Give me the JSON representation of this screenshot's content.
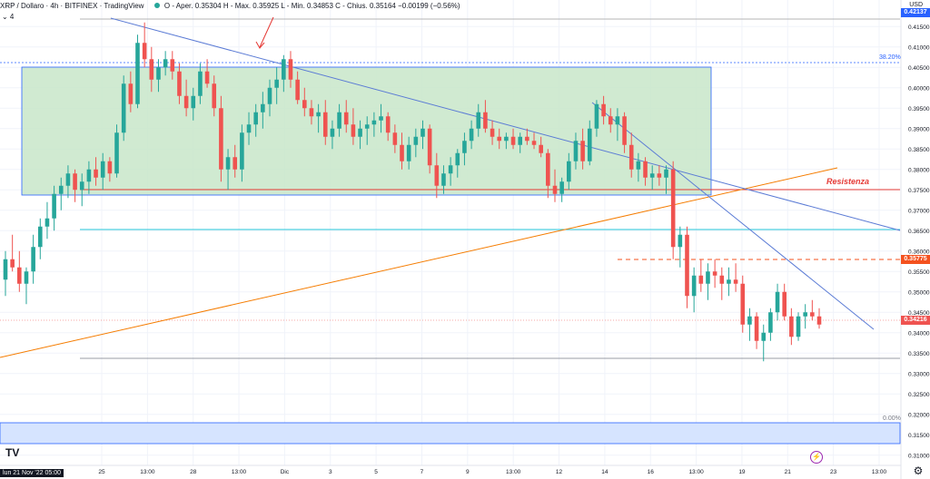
{
  "header": {
    "symbol": "XRP / Dollaro · 4h · BITFINEX · TradingView",
    "ohlc": "O - Aper. 0.35304  H - Max. 0.35925  L - Min. 0.34853  C - Chius. 0.35164  −0.00199 (−0.56%)",
    "collapse_label": "⌄ 4",
    "currency": "USD"
  },
  "labels": {
    "fib_top": "38.20%",
    "fib_bottom": "0.00%",
    "resistance": "Resistenza",
    "date_start": "lun 21 Nov '22  05:00"
  },
  "price_tags": {
    "top": "0.42137",
    "dashed": "0.35775",
    "current": "0.34216"
  },
  "colors": {
    "up": "#26a69a",
    "down": "#ef5350",
    "box_fill": "#c8e6c9",
    "box_border": "#2962ff",
    "trend": "#5b7bd5",
    "support_orange": "#f57c00",
    "resistance_red": "#e53935",
    "cyan_line": "#26c6da",
    "bottom_band": "#d6e4ff"
  },
  "chart_data": {
    "type": "candlestick",
    "yaxis_ticks": [
      "0.41500",
      "0.41000",
      "0.40500",
      "0.40000",
      "0.39500",
      "0.39000",
      "0.38500",
      "0.38000",
      "0.37500",
      "0.37000",
      "0.36500",
      "0.36000",
      "0.35500",
      "0.35000",
      "0.34500",
      "0.34000",
      "0.33500",
      "0.33000",
      "0.32500",
      "0.32000",
      "0.31500",
      "0.31000"
    ],
    "xaxis_ticks": [
      "25",
      "13:00",
      "28",
      "13:00",
      "Dic",
      "3",
      "5",
      "7",
      "9",
      "13:00",
      "12",
      "14",
      "16",
      "13:00",
      "19",
      "21",
      "23",
      "13:00"
    ],
    "ylim": [
      0.3075,
      0.4215
    ],
    "candles": [
      [
        0.353,
        0.36,
        0.349,
        0.358
      ],
      [
        0.358,
        0.364,
        0.355,
        0.356
      ],
      [
        0.356,
        0.36,
        0.35,
        0.352
      ],
      [
        0.352,
        0.356,
        0.347,
        0.355
      ],
      [
        0.355,
        0.364,
        0.352,
        0.361
      ],
      [
        0.361,
        0.368,
        0.358,
        0.366
      ],
      [
        0.366,
        0.372,
        0.363,
        0.368
      ],
      [
        0.368,
        0.376,
        0.365,
        0.374
      ],
      [
        0.374,
        0.378,
        0.37,
        0.376
      ],
      [
        0.376,
        0.381,
        0.373,
        0.379
      ],
      [
        0.379,
        0.38,
        0.372,
        0.375
      ],
      [
        0.375,
        0.379,
        0.371,
        0.377
      ],
      [
        0.377,
        0.382,
        0.374,
        0.38
      ],
      [
        0.38,
        0.383,
        0.376,
        0.378
      ],
      [
        0.378,
        0.384,
        0.375,
        0.382
      ],
      [
        0.382,
        0.383,
        0.377,
        0.379
      ],
      [
        0.379,
        0.391,
        0.378,
        0.389
      ],
      [
        0.389,
        0.403,
        0.387,
        0.401
      ],
      [
        0.401,
        0.404,
        0.394,
        0.396
      ],
      [
        0.396,
        0.413,
        0.395,
        0.411
      ],
      [
        0.411,
        0.416,
        0.405,
        0.407
      ],
      [
        0.407,
        0.41,
        0.399,
        0.402
      ],
      [
        0.402,
        0.407,
        0.399,
        0.405
      ],
      [
        0.405,
        0.409,
        0.403,
        0.407
      ],
      [
        0.407,
        0.409,
        0.402,
        0.404
      ],
      [
        0.404,
        0.406,
        0.396,
        0.398
      ],
      [
        0.398,
        0.402,
        0.393,
        0.395
      ],
      [
        0.395,
        0.4,
        0.392,
        0.398
      ],
      [
        0.398,
        0.406,
        0.396,
        0.404
      ],
      [
        0.404,
        0.407,
        0.4,
        0.401
      ],
      [
        0.401,
        0.403,
        0.393,
        0.395
      ],
      [
        0.395,
        0.398,
        0.377,
        0.38
      ],
      [
        0.38,
        0.385,
        0.375,
        0.383
      ],
      [
        0.383,
        0.386,
        0.378,
        0.38
      ],
      [
        0.38,
        0.391,
        0.377,
        0.389
      ],
      [
        0.389,
        0.394,
        0.386,
        0.391
      ],
      [
        0.391,
        0.396,
        0.388,
        0.394
      ],
      [
        0.394,
        0.399,
        0.39,
        0.396
      ],
      [
        0.396,
        0.402,
        0.393,
        0.4
      ],
      [
        0.4,
        0.405,
        0.396,
        0.402
      ],
      [
        0.402,
        0.408,
        0.399,
        0.407
      ],
      [
        0.407,
        0.409,
        0.4,
        0.402
      ],
      [
        0.402,
        0.404,
        0.396,
        0.397
      ],
      [
        0.397,
        0.4,
        0.393,
        0.395
      ],
      [
        0.395,
        0.397,
        0.391,
        0.393
      ],
      [
        0.393,
        0.396,
        0.389,
        0.394
      ],
      [
        0.394,
        0.397,
        0.386,
        0.388
      ],
      [
        0.388,
        0.392,
        0.385,
        0.39
      ],
      [
        0.39,
        0.396,
        0.388,
        0.394
      ],
      [
        0.394,
        0.397,
        0.389,
        0.391
      ],
      [
        0.391,
        0.395,
        0.386,
        0.388
      ],
      [
        0.388,
        0.392,
        0.385,
        0.39
      ],
      [
        0.39,
        0.393,
        0.386,
        0.391
      ],
      [
        0.391,
        0.394,
        0.388,
        0.392
      ],
      [
        0.392,
        0.396,
        0.389,
        0.393
      ],
      [
        0.393,
        0.394,
        0.387,
        0.389
      ],
      [
        0.389,
        0.391,
        0.384,
        0.386
      ],
      [
        0.386,
        0.389,
        0.38,
        0.382
      ],
      [
        0.382,
        0.388,
        0.38,
        0.386
      ],
      [
        0.386,
        0.39,
        0.383,
        0.388
      ],
      [
        0.388,
        0.392,
        0.385,
        0.39
      ],
      [
        0.39,
        0.391,
        0.379,
        0.381
      ],
      [
        0.381,
        0.384,
        0.373,
        0.376
      ],
      [
        0.376,
        0.381,
        0.374,
        0.379
      ],
      [
        0.379,
        0.383,
        0.376,
        0.381
      ],
      [
        0.381,
        0.385,
        0.378,
        0.384
      ],
      [
        0.384,
        0.389,
        0.381,
        0.387
      ],
      [
        0.387,
        0.392,
        0.385,
        0.39
      ],
      [
        0.39,
        0.396,
        0.388,
        0.394
      ],
      [
        0.394,
        0.397,
        0.389,
        0.39
      ],
      [
        0.39,
        0.392,
        0.386,
        0.388
      ],
      [
        0.388,
        0.39,
        0.385,
        0.387
      ],
      [
        0.387,
        0.389,
        0.385,
        0.388
      ],
      [
        0.388,
        0.39,
        0.385,
        0.386
      ],
      [
        0.386,
        0.389,
        0.384,
        0.388
      ],
      [
        0.388,
        0.39,
        0.386,
        0.387
      ],
      [
        0.387,
        0.389,
        0.385,
        0.386
      ],
      [
        0.386,
        0.388,
        0.383,
        0.384
      ],
      [
        0.384,
        0.385,
        0.373,
        0.376
      ],
      [
        0.376,
        0.38,
        0.372,
        0.374
      ],
      [
        0.374,
        0.378,
        0.372,
        0.377
      ],
      [
        0.377,
        0.384,
        0.375,
        0.382
      ],
      [
        0.382,
        0.389,
        0.38,
        0.387
      ],
      [
        0.387,
        0.39,
        0.38,
        0.382
      ],
      [
        0.382,
        0.392,
        0.381,
        0.39
      ],
      [
        0.39,
        0.397,
        0.388,
        0.396
      ],
      [
        0.396,
        0.398,
        0.391,
        0.393
      ],
      [
        0.393,
        0.395,
        0.389,
        0.391
      ],
      [
        0.391,
        0.395,
        0.387,
        0.393
      ],
      [
        0.393,
        0.394,
        0.384,
        0.386
      ],
      [
        0.386,
        0.389,
        0.378,
        0.38
      ],
      [
        0.38,
        0.384,
        0.377,
        0.382
      ],
      [
        0.382,
        0.383,
        0.376,
        0.378
      ],
      [
        0.378,
        0.381,
        0.375,
        0.379
      ],
      [
        0.379,
        0.381,
        0.376,
        0.378
      ],
      [
        0.378,
        0.381,
        0.374,
        0.38
      ],
      [
        0.38,
        0.382,
        0.358,
        0.361
      ],
      [
        0.361,
        0.366,
        0.356,
        0.364
      ],
      [
        0.364,
        0.366,
        0.346,
        0.349
      ],
      [
        0.349,
        0.356,
        0.345,
        0.354
      ],
      [
        0.354,
        0.358,
        0.35,
        0.352
      ],
      [
        0.352,
        0.357,
        0.348,
        0.355
      ],
      [
        0.355,
        0.358,
        0.351,
        0.354
      ],
      [
        0.354,
        0.356,
        0.348,
        0.352
      ],
      [
        0.352,
        0.356,
        0.349,
        0.353
      ],
      [
        0.353,
        0.357,
        0.35,
        0.352
      ],
      [
        0.352,
        0.354,
        0.34,
        0.342
      ],
      [
        0.342,
        0.346,
        0.338,
        0.344
      ],
      [
        0.344,
        0.345,
        0.336,
        0.338
      ],
      [
        0.338,
        0.342,
        0.333,
        0.34
      ],
      [
        0.34,
        0.346,
        0.338,
        0.345
      ],
      [
        0.345,
        0.352,
        0.343,
        0.35
      ],
      [
        0.35,
        0.352,
        0.343,
        0.344
      ],
      [
        0.344,
        0.346,
        0.337,
        0.339
      ],
      [
        0.339,
        0.345,
        0.338,
        0.344
      ],
      [
        0.344,
        0.347,
        0.341,
        0.345
      ],
      [
        0.345,
        0.348,
        0.343,
        0.344
      ],
      [
        0.344,
        0.346,
        0.341,
        0.342
      ]
    ]
  }
}
